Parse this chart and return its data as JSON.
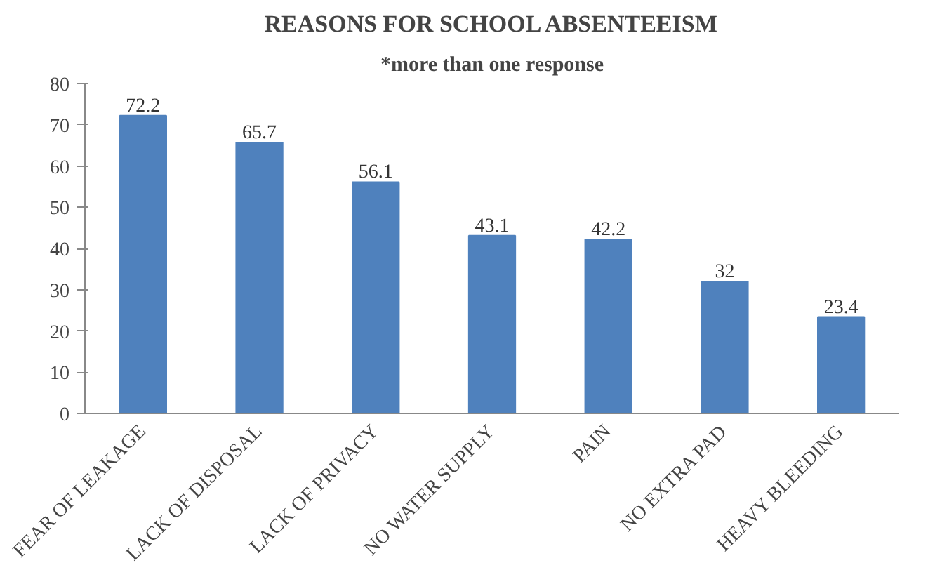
{
  "chart_data": {
    "type": "bar",
    "title": "REASONS FOR SCHOOL ABSENTEEISM",
    "subtitle": "*more than one response",
    "categories": [
      "FEAR OF LEAKAGE",
      "LACK OF DISPOSAL",
      "LACK OF PRIVACY",
      "NO WATER SUPPLY",
      "PAIN",
      "NO EXTRA PAD",
      "HEAVY BLEEDING"
    ],
    "values": [
      72.2,
      65.7,
      56.1,
      43.1,
      42.2,
      32,
      23.4
    ],
    "color": "#4f81bd",
    "ylim": [
      0,
      80
    ],
    "yticks": [
      0,
      10,
      20,
      30,
      40,
      50,
      60,
      70,
      80
    ],
    "data_labels": true,
    "grid": false
  }
}
